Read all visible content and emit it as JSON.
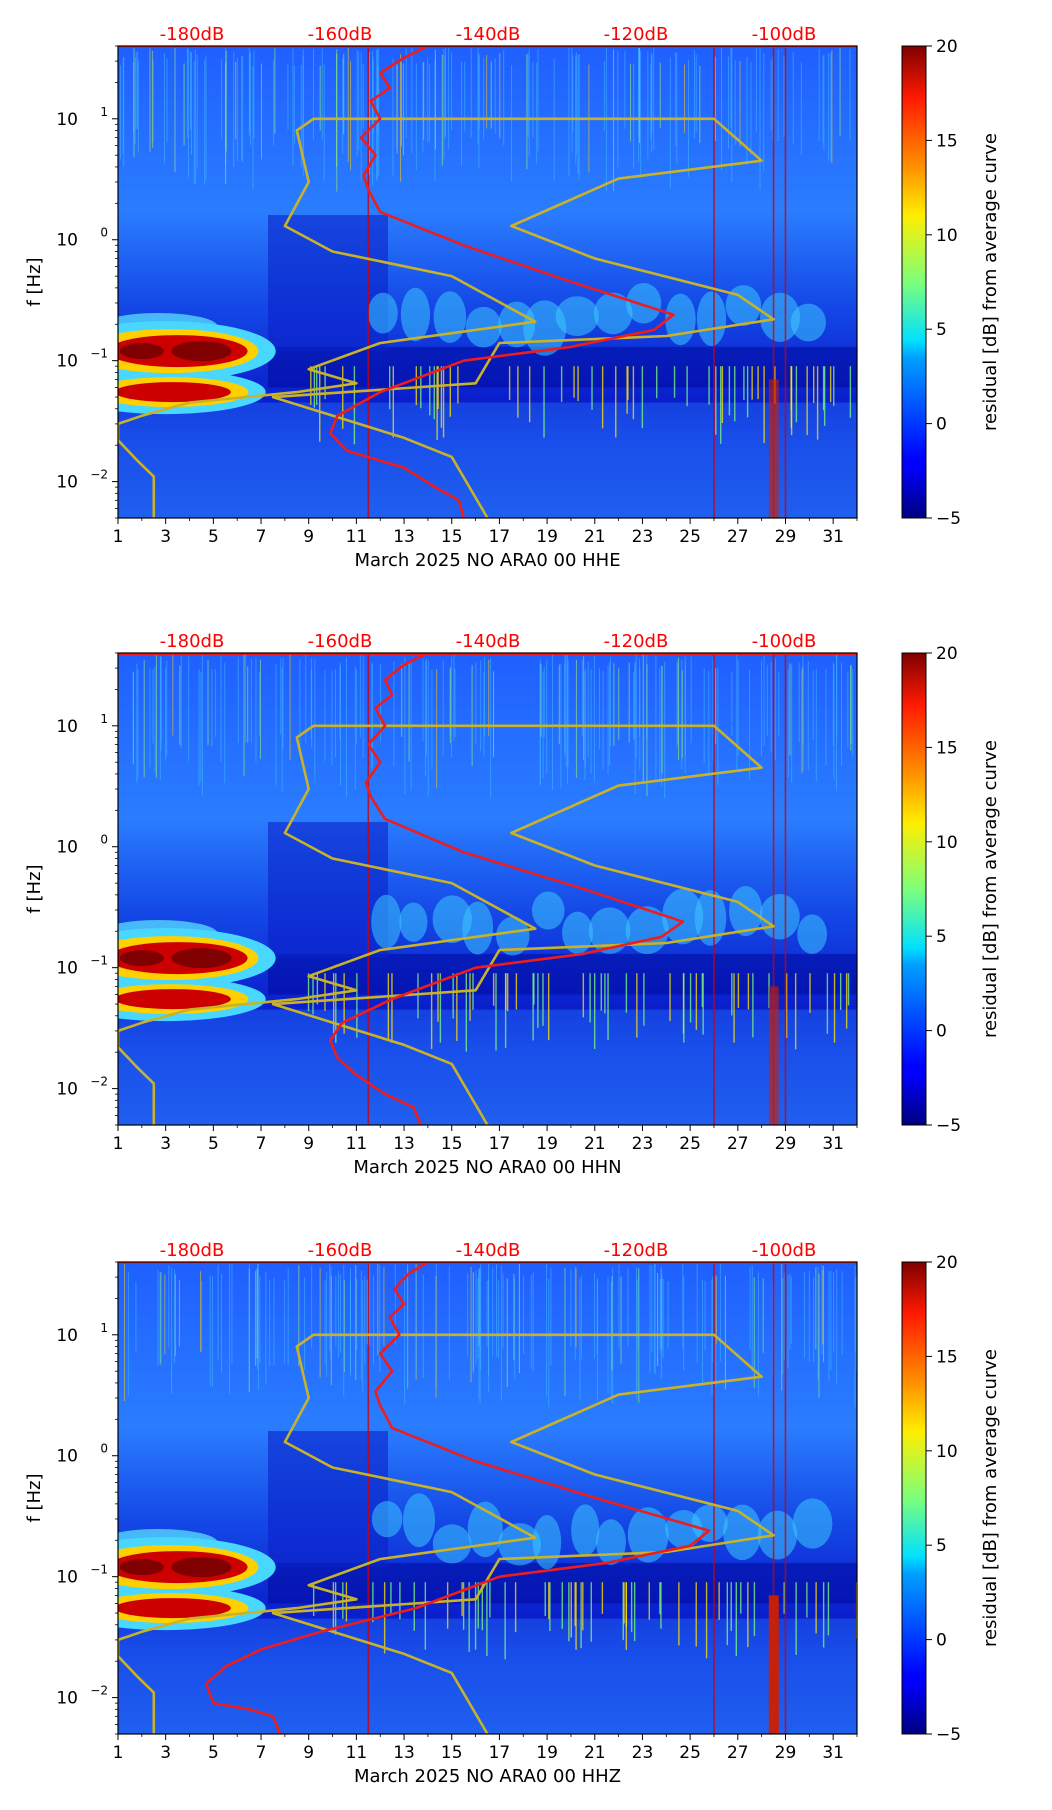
{
  "chart_data": [
    {
      "type": "heatmap",
      "xlabel": "March 2025 NO ARA0 00 HHE",
      "ylabel": "f [Hz]",
      "x_ticks": [
        1,
        3,
        5,
        7,
        9,
        11,
        13,
        15,
        17,
        19,
        21,
        23,
        25,
        27,
        29,
        31
      ],
      "xlim": [
        1,
        32
      ],
      "y_ticks": [
        {
          "value": 0.01,
          "label": "10",
          "exp": "−2"
        },
        {
          "value": 0.1,
          "label": "10",
          "exp": "−1"
        },
        {
          "value": 1,
          "label": "10",
          "exp": "0"
        },
        {
          "value": 10,
          "label": "10",
          "exp": "1"
        }
      ],
      "ylim": [
        0.005,
        40
      ],
      "colorbar": {
        "label": "residual [dB] from average curve",
        "range": [
          -5,
          20
        ],
        "ticks": [
          20,
          15,
          10,
          5,
          0,
          -5
        ]
      },
      "db_axis": {
        "ticks": [
          "-180dB",
          "-160dB",
          "-140dB",
          "-120dB",
          "-100dB"
        ],
        "color": "#ff0000"
      },
      "noise_model_curve": [
        [
          2.5,
          0.005
        ],
        [
          2.5,
          0.011
        ],
        [
          1.8,
          0.015
        ],
        [
          1.0,
          0.022
        ],
        [
          1.0,
          0.03
        ],
        [
          2.0,
          0.035
        ],
        [
          4.0,
          0.045
        ],
        [
          8.5,
          0.055
        ],
        [
          11.0,
          0.065
        ],
        [
          9.0,
          0.085
        ],
        [
          12.0,
          0.14
        ],
        [
          18.5,
          0.21
        ],
        [
          15.0,
          0.5
        ],
        [
          10.0,
          0.8
        ],
        [
          8.0,
          1.3
        ],
        [
          9.0,
          3.0
        ],
        [
          8.5,
          8.0
        ],
        [
          9.2,
          10.0
        ],
        [
          26.0,
          10.0
        ],
        [
          28.0,
          4.5
        ],
        [
          22.0,
          3.2
        ],
        [
          17.5,
          1.3
        ],
        [
          21.0,
          0.7
        ],
        [
          27.0,
          0.35
        ],
        [
          28.5,
          0.22
        ],
        [
          24.0,
          0.16
        ],
        [
          17.0,
          0.14
        ],
        [
          16.0,
          0.065
        ],
        [
          7.5,
          0.05
        ],
        [
          13.0,
          0.023
        ],
        [
          15.0,
          0.016
        ],
        [
          16.5,
          0.005
        ]
      ],
      "psd_curve": [
        [
          15.5,
          0.005
        ],
        [
          15.3,
          0.007
        ],
        [
          14.3,
          0.009
        ],
        [
          13.0,
          0.013
        ],
        [
          10.6,
          0.018
        ],
        [
          9.9,
          0.025
        ],
        [
          10.2,
          0.035
        ],
        [
          12.0,
          0.055
        ],
        [
          15.5,
          0.1
        ],
        [
          20.0,
          0.13
        ],
        [
          23.5,
          0.18
        ],
        [
          24.3,
          0.24
        ],
        [
          20.0,
          0.45
        ],
        [
          15.5,
          0.9
        ],
        [
          12.0,
          1.7
        ],
        [
          11.5,
          2.6
        ],
        [
          11.3,
          3.4
        ],
        [
          11.8,
          5.0
        ],
        [
          11.2,
          7.0
        ],
        [
          12.0,
          10.0
        ],
        [
          11.6,
          14.0
        ],
        [
          12.4,
          18.0
        ],
        [
          12.0,
          24.0
        ],
        [
          13.0,
          32.0
        ],
        [
          14.0,
          40.0
        ]
      ]
    },
    {
      "type": "heatmap",
      "xlabel": "March 2025 NO ARA0 00 HHN",
      "ylabel": "f [Hz]",
      "x_ticks": [
        1,
        3,
        5,
        7,
        9,
        11,
        13,
        15,
        17,
        19,
        21,
        23,
        25,
        27,
        29,
        31
      ],
      "xlim": [
        1,
        32
      ],
      "y_ticks": [
        {
          "value": 0.01,
          "label": "10",
          "exp": "−2"
        },
        {
          "value": 0.1,
          "label": "10",
          "exp": "−1"
        },
        {
          "value": 1,
          "label": "10",
          "exp": "0"
        },
        {
          "value": 10,
          "label": "10",
          "exp": "1"
        }
      ],
      "ylim": [
        0.005,
        40
      ],
      "colorbar": {
        "label": "residual [dB] from average curve",
        "range": [
          -5,
          20
        ],
        "ticks": [
          20,
          15,
          10,
          5,
          0,
          -5
        ]
      },
      "db_axis": {
        "ticks": [
          "-180dB",
          "-160dB",
          "-140dB",
          "-120dB",
          "-100dB"
        ],
        "color": "#ff0000"
      },
      "noise_model_curve": [
        [
          2.5,
          0.005
        ],
        [
          2.5,
          0.011
        ],
        [
          1.8,
          0.015
        ],
        [
          1.0,
          0.022
        ],
        [
          1.0,
          0.03
        ],
        [
          2.0,
          0.035
        ],
        [
          4.0,
          0.045
        ],
        [
          8.5,
          0.055
        ],
        [
          11.0,
          0.065
        ],
        [
          9.0,
          0.085
        ],
        [
          12.0,
          0.14
        ],
        [
          18.5,
          0.21
        ],
        [
          15.0,
          0.5
        ],
        [
          10.0,
          0.8
        ],
        [
          8.0,
          1.3
        ],
        [
          9.0,
          3.0
        ],
        [
          8.5,
          8.0
        ],
        [
          9.2,
          10.0
        ],
        [
          26.0,
          10.0
        ],
        [
          28.0,
          4.5
        ],
        [
          22.0,
          3.2
        ],
        [
          17.5,
          1.3
        ],
        [
          21.0,
          0.7
        ],
        [
          27.0,
          0.35
        ],
        [
          28.5,
          0.22
        ],
        [
          24.0,
          0.16
        ],
        [
          17.0,
          0.14
        ],
        [
          16.0,
          0.065
        ],
        [
          7.5,
          0.05
        ],
        [
          13.0,
          0.023
        ],
        [
          15.0,
          0.016
        ],
        [
          16.5,
          0.005
        ]
      ],
      "psd_curve": [
        [
          13.7,
          0.005
        ],
        [
          13.4,
          0.007
        ],
        [
          12.2,
          0.009
        ],
        [
          11.0,
          0.013
        ],
        [
          10.2,
          0.018
        ],
        [
          9.9,
          0.025
        ],
        [
          10.4,
          0.035
        ],
        [
          12.5,
          0.055
        ],
        [
          16.0,
          0.1
        ],
        [
          20.5,
          0.13
        ],
        [
          23.8,
          0.18
        ],
        [
          24.7,
          0.24
        ],
        [
          20.5,
          0.45
        ],
        [
          15.5,
          0.9
        ],
        [
          12.2,
          1.7
        ],
        [
          11.6,
          2.6
        ],
        [
          11.4,
          3.4
        ],
        [
          12.0,
          5.0
        ],
        [
          11.5,
          7.0
        ],
        [
          12.2,
          10.0
        ],
        [
          11.8,
          14.0
        ],
        [
          12.5,
          18.0
        ],
        [
          12.2,
          24.0
        ],
        [
          13.0,
          32.0
        ],
        [
          14.0,
          40.0
        ]
      ]
    },
    {
      "type": "heatmap",
      "xlabel": "March 2025 NO ARA0 00 HHZ",
      "ylabel": "f [Hz]",
      "x_ticks": [
        1,
        3,
        5,
        7,
        9,
        11,
        13,
        15,
        17,
        19,
        21,
        23,
        25,
        27,
        29,
        31
      ],
      "xlim": [
        1,
        32
      ],
      "y_ticks": [
        {
          "value": 0.01,
          "label": "10",
          "exp": "−2"
        },
        {
          "value": 0.1,
          "label": "10",
          "exp": "−1"
        },
        {
          "value": 1,
          "label": "10",
          "exp": "0"
        },
        {
          "value": 10,
          "label": "10",
          "exp": "1"
        }
      ],
      "ylim": [
        0.005,
        40
      ],
      "colorbar": {
        "label": "residual [dB] from average curve",
        "range": [
          -5,
          20
        ],
        "ticks": [
          20,
          15,
          10,
          5,
          0,
          -5
        ]
      },
      "db_axis": {
        "ticks": [
          "-180dB",
          "-160dB",
          "-140dB",
          "-120dB",
          "-100dB"
        ],
        "color": "#ff0000"
      },
      "noise_model_curve": [
        [
          2.5,
          0.005
        ],
        [
          2.5,
          0.011
        ],
        [
          1.8,
          0.015
        ],
        [
          1.0,
          0.022
        ],
        [
          1.0,
          0.03
        ],
        [
          2.0,
          0.035
        ],
        [
          4.0,
          0.045
        ],
        [
          8.5,
          0.055
        ],
        [
          11.0,
          0.065
        ],
        [
          9.0,
          0.085
        ],
        [
          12.0,
          0.14
        ],
        [
          18.5,
          0.21
        ],
        [
          15.0,
          0.5
        ],
        [
          10.0,
          0.8
        ],
        [
          8.0,
          1.3
        ],
        [
          9.0,
          3.0
        ],
        [
          8.5,
          8.0
        ],
        [
          9.2,
          10.0
        ],
        [
          26.0,
          10.0
        ],
        [
          28.0,
          4.5
        ],
        [
          22.0,
          3.2
        ],
        [
          17.5,
          1.3
        ],
        [
          21.0,
          0.7
        ],
        [
          27.0,
          0.35
        ],
        [
          28.5,
          0.22
        ],
        [
          24.0,
          0.16
        ],
        [
          17.0,
          0.14
        ],
        [
          16.0,
          0.065
        ],
        [
          7.5,
          0.05
        ],
        [
          13.0,
          0.023
        ],
        [
          15.0,
          0.016
        ],
        [
          16.5,
          0.005
        ]
      ],
      "psd_curve": [
        [
          7.8,
          0.005
        ],
        [
          7.5,
          0.007
        ],
        [
          6.5,
          0.008
        ],
        [
          5.0,
          0.009
        ],
        [
          4.7,
          0.013
        ],
        [
          5.5,
          0.018
        ],
        [
          7.0,
          0.025
        ],
        [
          9.5,
          0.035
        ],
        [
          13.5,
          0.055
        ],
        [
          17.0,
          0.1
        ],
        [
          21.5,
          0.13
        ],
        [
          25.0,
          0.18
        ],
        [
          25.8,
          0.24
        ],
        [
          21.0,
          0.45
        ],
        [
          16.0,
          0.9
        ],
        [
          12.5,
          1.7
        ],
        [
          12.0,
          2.6
        ],
        [
          11.8,
          3.4
        ],
        [
          12.5,
          5.0
        ],
        [
          12.0,
          7.0
        ],
        [
          12.8,
          10.0
        ],
        [
          12.4,
          14.0
        ],
        [
          13.0,
          18.0
        ],
        [
          12.6,
          24.0
        ],
        [
          13.2,
          32.0
        ],
        [
          14.0,
          40.0
        ]
      ]
    }
  ]
}
